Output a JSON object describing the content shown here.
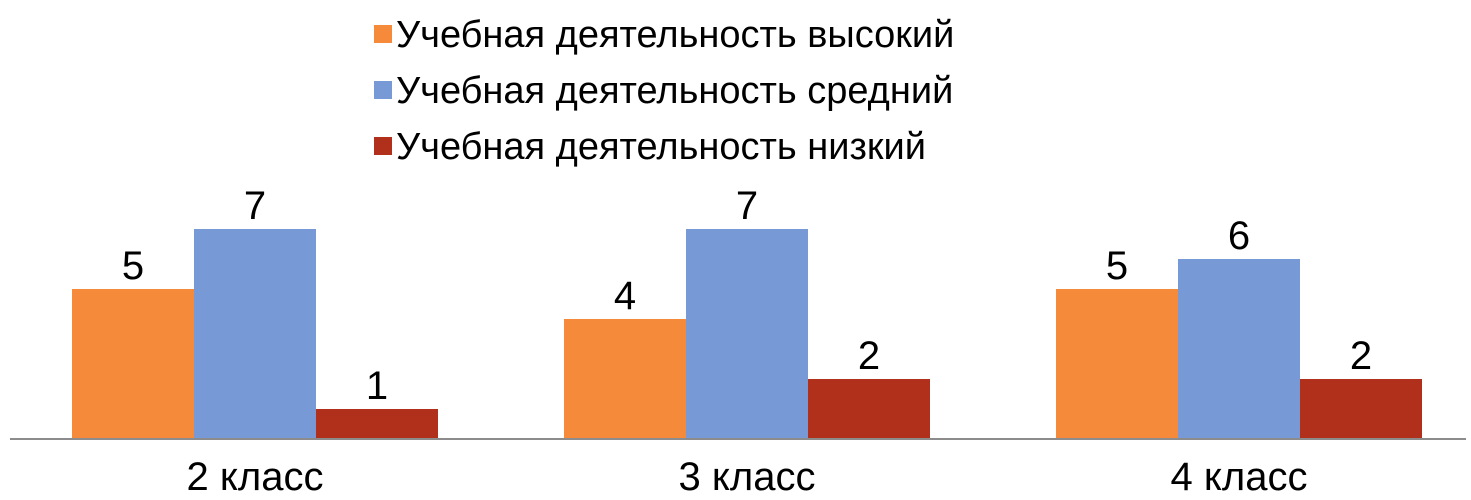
{
  "chart_data": {
    "type": "bar",
    "categories": [
      "2 класс",
      "3 класс",
      "4 класс"
    ],
    "series": [
      {
        "name": "Учебная деятельность высокий",
        "values": [
          5,
          4,
          5
        ],
        "color": "#F58A3A"
      },
      {
        "name": "Учебная деятельность средний",
        "values": [
          7,
          7,
          6
        ],
        "color": "#7799D6"
      },
      {
        "name": "Учебная деятельность низкий",
        "values": [
          1,
          2,
          2
        ],
        "color": "#B1301B"
      }
    ],
    "data_labels": true,
    "legend_position": "top",
    "grid": false,
    "ylim": [
      0,
      7
    ]
  }
}
